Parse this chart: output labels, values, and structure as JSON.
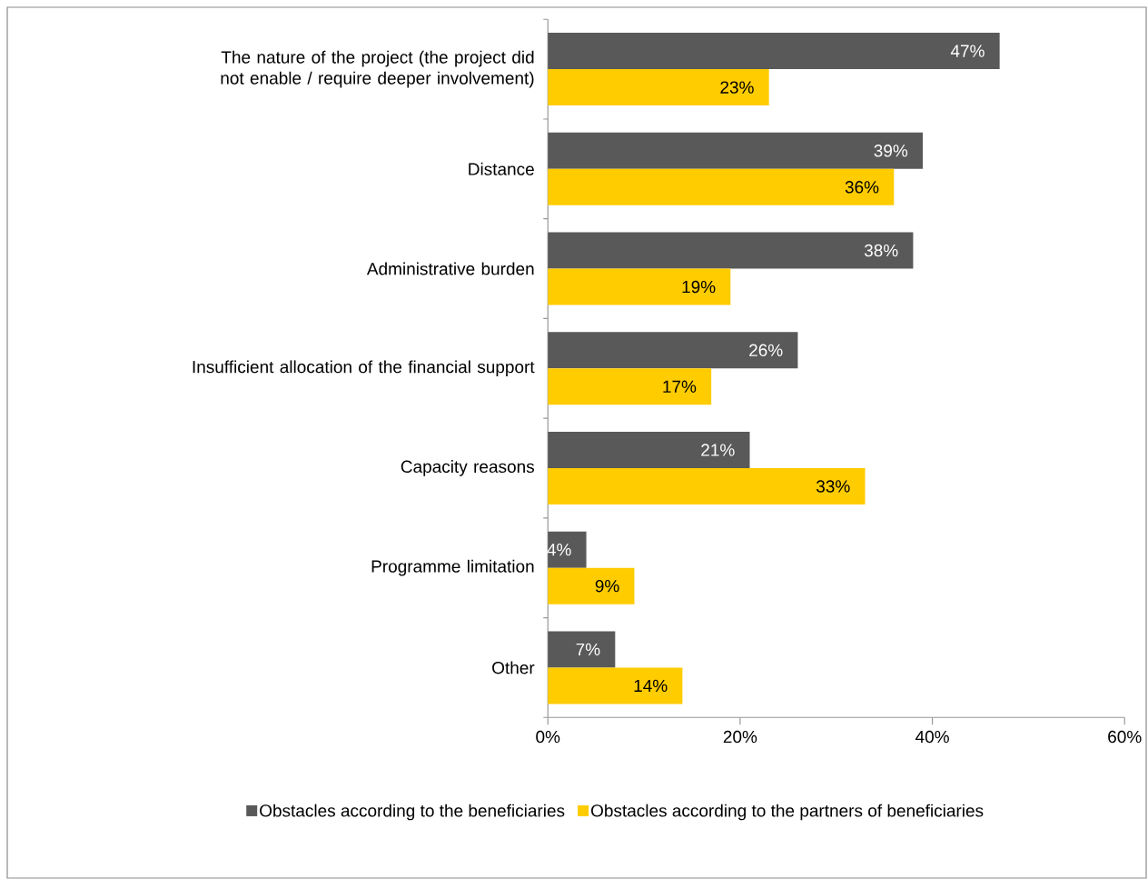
{
  "chart_data": {
    "type": "bar",
    "orientation": "horizontal",
    "categories": [
      "The nature of the project (the project did not enable / require deeper involvement)",
      "Distance",
      "Administrative burden",
      "Insufficient allocation of the financial support",
      "Capacity reasons",
      "Programme limitation",
      "Other"
    ],
    "series": [
      {
        "name": "Obstacles according to the beneficiaries",
        "color": "#595959",
        "values": [
          47,
          39,
          38,
          26,
          21,
          4,
          7
        ],
        "value_labels": [
          "47%",
          "39%",
          "38%",
          "26%",
          "21%",
          "4%",
          "7%"
        ]
      },
      {
        "name": "Obstacles according to the partners of beneficiaries",
        "color": "#ffcc00",
        "values": [
          23,
          36,
          19,
          17,
          33,
          9,
          14
        ],
        "value_labels": [
          "23%",
          "36%",
          "19%",
          "17%",
          "33%",
          "9%",
          "14%"
        ]
      }
    ],
    "xlim": [
      0,
      60
    ],
    "xticks": [
      {
        "value": 0,
        "label": "0%"
      },
      {
        "value": 20,
        "label": "20%"
      },
      {
        "value": 40,
        "label": "40%"
      },
      {
        "value": 60,
        "label": "60%"
      }
    ],
    "legend": "bottom"
  }
}
